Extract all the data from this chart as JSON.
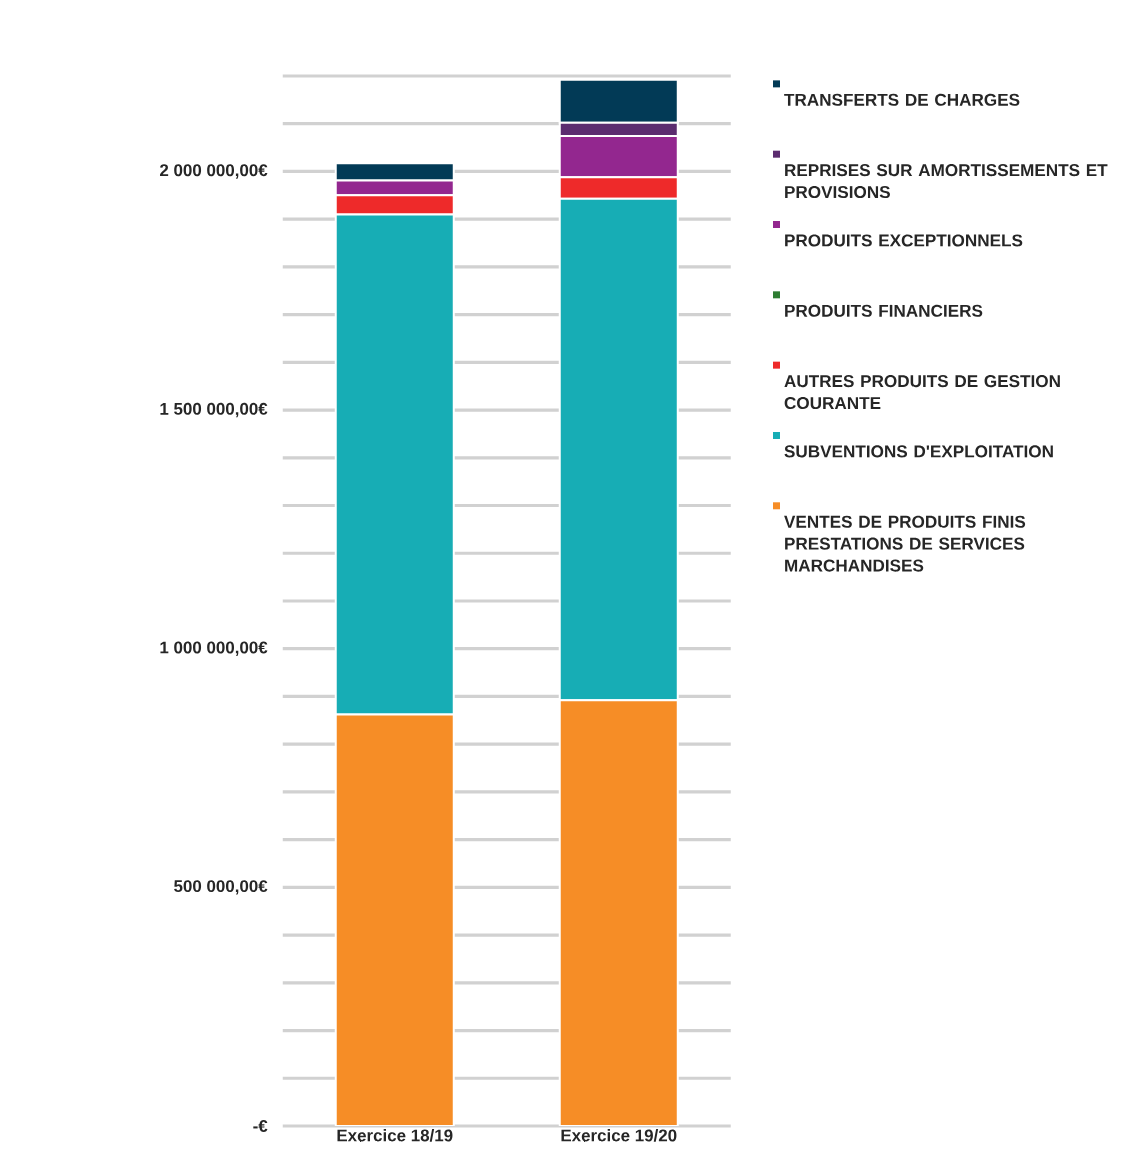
{
  "chart_data": {
    "type": "bar",
    "stacked": true,
    "categories": [
      "Exercice 18/19",
      "Exercice 19/20"
    ],
    "series": [
      {
        "name": "VENTES DE PRODUITS FINIS PRESTATIONS DE SERVICES MARCHANDISES",
        "color": "#f68d26",
        "values": [
          862000,
          892000
        ]
      },
      {
        "name": "SUBVENTIONS D'EXPLOITATION",
        "color": "#17adb5",
        "values": [
          1048000,
          1051000
        ]
      },
      {
        "name": "AUTRES PRODUITS DE GESTION COURANTE",
        "color": "#ee2a2a",
        "values": [
          40000,
          45000
        ]
      },
      {
        "name": "PRODUITS FINANCIERS",
        "color": "#2e7d32",
        "values": [
          0,
          0
        ]
      },
      {
        "name": "PRODUITS EXCEPTIONNELS",
        "color": "#93278f",
        "values": [
          31000,
          86000
        ]
      },
      {
        "name": "REPRISES SUR AMORTISSEMENTS ET PROVISIONS",
        "color": "#5b2c6f",
        "values": [
          0,
          28000
        ]
      },
      {
        "name": "TRANSFERTS DE CHARGES",
        "color": "#023a56",
        "values": [
          36000,
          90000
        ]
      }
    ],
    "ylim": [
      0,
      2200000
    ],
    "yticks": [
      {
        "value": 0,
        "label": "-€"
      },
      {
        "value": 100000,
        "label": null
      },
      {
        "value": 200000,
        "label": null
      },
      {
        "value": 300000,
        "label": null
      },
      {
        "value": 400000,
        "label": null
      },
      {
        "value": 500000,
        "label": "500 000,00€"
      },
      {
        "value": 600000,
        "label": null
      },
      {
        "value": 700000,
        "label": null
      },
      {
        "value": 800000,
        "label": null
      },
      {
        "value": 900000,
        "label": null
      },
      {
        "value": 1000000,
        "label": "1 000 000,00€"
      },
      {
        "value": 1100000,
        "label": null
      },
      {
        "value": 1200000,
        "label": null
      },
      {
        "value": 1300000,
        "label": null
      },
      {
        "value": 1400000,
        "label": null
      },
      {
        "value": 1500000,
        "label": "1 500 000,00€"
      },
      {
        "value": 1600000,
        "label": null
      },
      {
        "value": 1700000,
        "label": null
      },
      {
        "value": 1800000,
        "label": null
      },
      {
        "value": 1900000,
        "label": null
      },
      {
        "value": 2000000,
        "label": "2 000 000,00€"
      },
      {
        "value": 2100000,
        "label": null
      },
      {
        "value": 2200000,
        "label": null
      }
    ],
    "grid": "y",
    "legend": "right"
  }
}
